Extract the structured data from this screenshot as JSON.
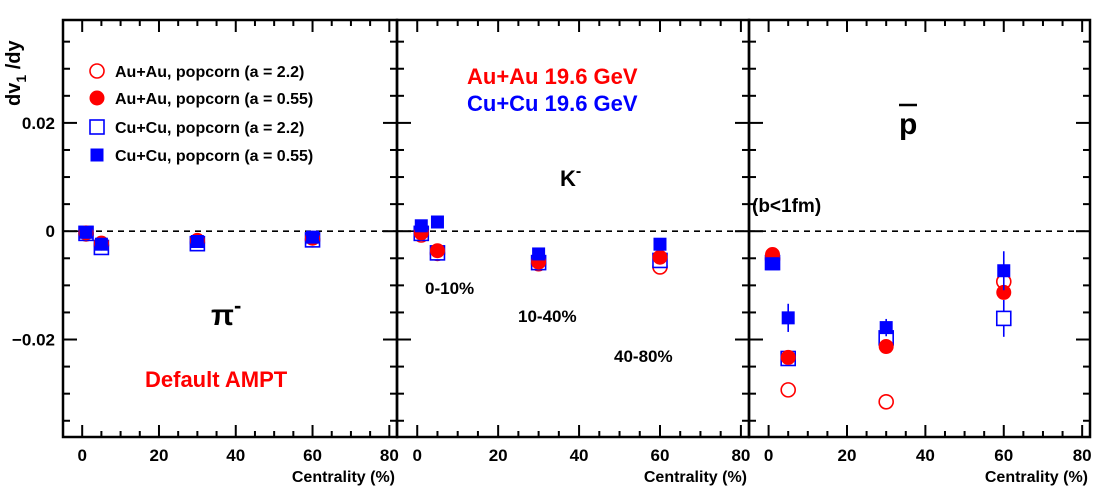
{
  "chart_data": {
    "type": "scatter",
    "ylabel": "dv1/dy",
    "ylabel_parts": {
      "main": "dv",
      "sub": "1",
      "tail": " /dy"
    },
    "y_ticks": [
      {
        "value": 0.02,
        "label": "0.02"
      },
      {
        "value": 0,
        "label": "0"
      },
      {
        "value": -0.02,
        "label": "−0.02"
      }
    ],
    "ylim": [
      -0.038,
      0.039
    ],
    "xlim": [
      -5,
      82
    ],
    "x_ticks": [
      "0",
      "20",
      "40",
      "60",
      "80"
    ],
    "x_tick_values": [
      0,
      20,
      40,
      60,
      80
    ],
    "xlabel": "Centrality (%)",
    "legend": [
      {
        "series": "auau_a22",
        "label": "Au+Au, popcorn (a = 2.2)"
      },
      {
        "series": "auau_a055",
        "label": "Au+Au, popcorn (a = 0.55)"
      },
      {
        "series": "cucu_a22",
        "label": "Cu+Cu, popcorn (a = 2.2)"
      },
      {
        "series": "cucu_a055",
        "label": "Cu+Cu, popcorn (a = 0.55)"
      }
    ],
    "series_styles": {
      "auau_a22": {
        "marker": "circle",
        "filled": false,
        "color": "#ff0000"
      },
      "auau_a055": {
        "marker": "circle",
        "filled": true,
        "color": "#ff0000"
      },
      "cucu_a22": {
        "marker": "square",
        "filled": false,
        "color": "#0000ff"
      },
      "cucu_a055": {
        "marker": "square",
        "filled": true,
        "color": "#0000ff"
      }
    },
    "panels": [
      {
        "particle": {
          "base": "π",
          "sup": "-"
        },
        "series": {
          "auau_a22": {
            "x": [
              1,
              5,
              30,
              60
            ],
            "y": [
              -0.0005,
              -0.0026,
              -0.0021,
              -0.0016
            ],
            "err": [
              0,
              0,
              0,
              0
            ]
          },
          "auau_a055": {
            "x": [
              1,
              5,
              30,
              60
            ],
            "y": [
              -0.0003,
              -0.0022,
              -0.0017,
              -0.0013
            ],
            "err": [
              0,
              0,
              0,
              0
            ]
          },
          "cucu_a22": {
            "x": [
              1,
              5,
              30,
              60
            ],
            "y": [
              -0.0004,
              -0.003,
              -0.0023,
              -0.0016
            ],
            "err": [
              0,
              0,
              0,
              0
            ]
          },
          "cucu_a055": {
            "x": [
              1,
              5,
              30,
              60
            ],
            "y": [
              -0.0002,
              -0.0024,
              -0.0019,
              -0.0011
            ],
            "err": [
              0,
              0,
              0,
              0
            ]
          }
        }
      },
      {
        "particle": {
          "base": "K",
          "sup": "-"
        },
        "series": {
          "auau_a22": {
            "x": [
              1,
              5,
              30,
              60
            ],
            "y": [
              -0.0007,
              -0.0041,
              -0.006,
              -0.0066
            ],
            "err": [
              0,
              0,
              0,
              0
            ]
          },
          "auau_a055": {
            "x": [
              1,
              5,
              30,
              60
            ],
            "y": [
              -0.0003,
              -0.0036,
              -0.0057,
              -0.0048
            ],
            "err": [
              0,
              0,
              0,
              0
            ]
          },
          "cucu_a22": {
            "x": [
              1,
              5,
              30,
              60
            ],
            "y": [
              -0.0004,
              -0.004,
              -0.0058,
              -0.0054
            ],
            "err": [
              0,
              0,
              0,
              0
            ]
          },
          "cucu_a055": {
            "x": [
              1,
              5,
              30,
              60
            ],
            "y": [
              0.001,
              0.0017,
              -0.0042,
              -0.0024
            ],
            "err": [
              0,
              0,
              0,
              0.001
            ]
          }
        }
      },
      {
        "particle": {
          "base": "p",
          "sup": "",
          "overline": true
        },
        "series": {
          "auau_a22": {
            "x": [
              1,
              5,
              30,
              60
            ],
            "y": [
              -0.0051,
              -0.0293,
              -0.0315,
              -0.0093
            ],
            "err": [
              0,
              0,
              0,
              0
            ]
          },
          "auau_a055": {
            "x": [
              1,
              5,
              30,
              60
            ],
            "y": [
              -0.0043,
              -0.0233,
              -0.0213,
              -0.0113
            ],
            "err": [
              0,
              0,
              0,
              0
            ]
          },
          "cucu_a22": {
            "x": [
              1,
              5,
              30,
              60
            ],
            "y": [
              -0.0058,
              -0.0235,
              -0.0197,
              -0.0161
            ],
            "err": [
              0,
              0,
              0,
              0.0034
            ]
          },
          "cucu_a055": {
            "x": [
              1,
              5,
              30,
              60
            ],
            "y": [
              -0.006,
              -0.016,
              -0.0178,
              -0.0073
            ],
            "err": [
              0,
              0.0026,
              0.0016,
              0.0036
            ]
          }
        }
      }
    ],
    "annotations": {
      "model": "Default AMPT",
      "system_auau": "Au+Au 19.6 GeV",
      "system_cucu": "Cu+Cu 19.6 GeV",
      "bins": [
        "0-10%",
        "10-40%",
        "40-80%"
      ],
      "impact": "(b<1fm)"
    }
  },
  "colors": {
    "red": "#ff0000",
    "blue": "#0000ff",
    "axis": "#000000"
  }
}
